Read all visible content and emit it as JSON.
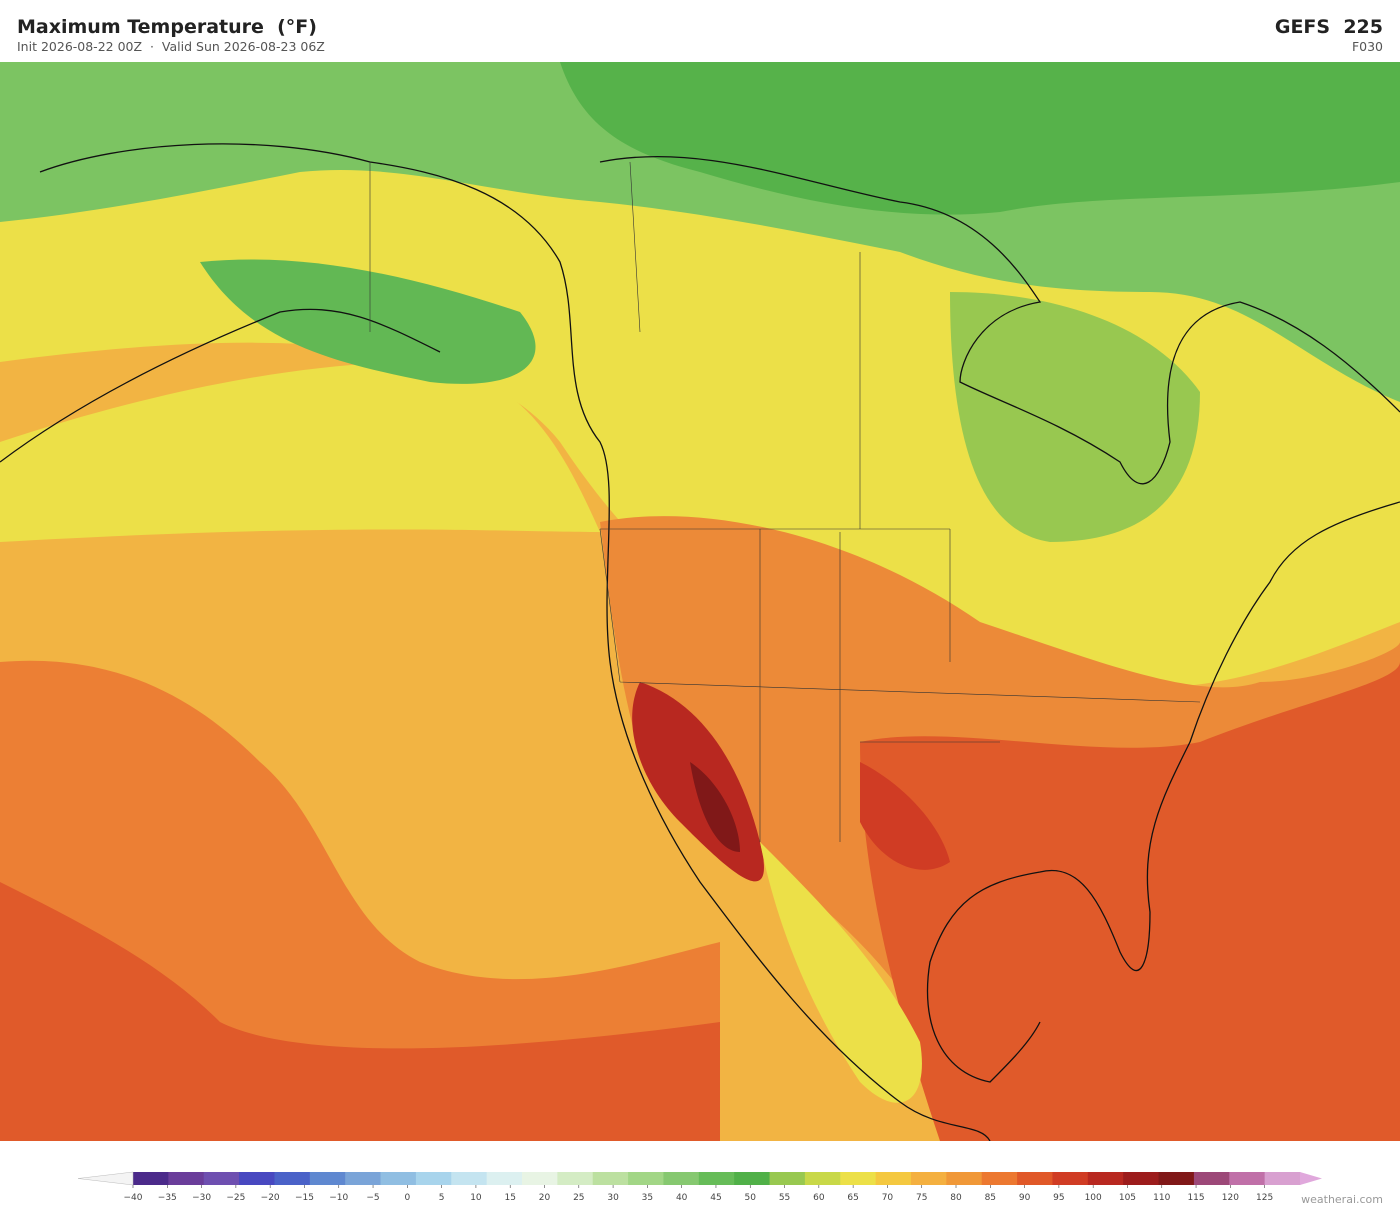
{
  "header": {
    "title": "Maximum Temperature  (°F)",
    "subtitle": "Init 2026-08-22 00Z  ·  Valid Sun 2026-08-23 06Z",
    "model": "GEFS  225",
    "forecast_hour": "F030"
  },
  "colorbar": {
    "ticks": [
      {
        "value": -40,
        "label": "−40"
      },
      {
        "value": -35,
        "label": "−35"
      },
      {
        "value": -30,
        "label": "−30"
      },
      {
        "value": -25,
        "label": "−25"
      },
      {
        "value": -20,
        "label": "−20"
      },
      {
        "value": -15,
        "label": "−15"
      },
      {
        "value": -10,
        "label": "−10"
      },
      {
        "value": -5,
        "label": "−5"
      },
      0,
      5,
      10,
      15,
      20,
      25,
      30,
      35,
      40,
      45,
      50,
      55,
      60,
      65,
      70,
      75,
      80,
      85,
      90,
      95,
      100,
      105,
      110,
      115,
      120,
      125
    ],
    "colors": [
      "#4b2a8a",
      "#6a3d9a",
      "#6e4fb0",
      "#4848c0",
      "#4a62c8",
      "#5f88d0",
      "#7aa4d8",
      "#90bee2",
      "#a8d4ec",
      "#c4e4f0",
      "#dcf0f0",
      "#e8f4e4",
      "#d4ecc4",
      "#bce0a0",
      "#a2d686",
      "#86c870",
      "#66bc58",
      "#50b048",
      "#98c850",
      "#c8d848",
      "#ece048",
      "#f4c840",
      "#f4b040",
      "#f09838",
      "#ec7830",
      "#e05828",
      "#d03c24",
      "#b82820",
      "#9c1c1c",
      "#801818",
      "#9c4878",
      "#c070a8",
      "#d8a0d0"
    ],
    "under_color": "#f4f4f4",
    "over_color": "#e0a8dc"
  },
  "footer": {
    "credit": "weatherai.com"
  }
}
